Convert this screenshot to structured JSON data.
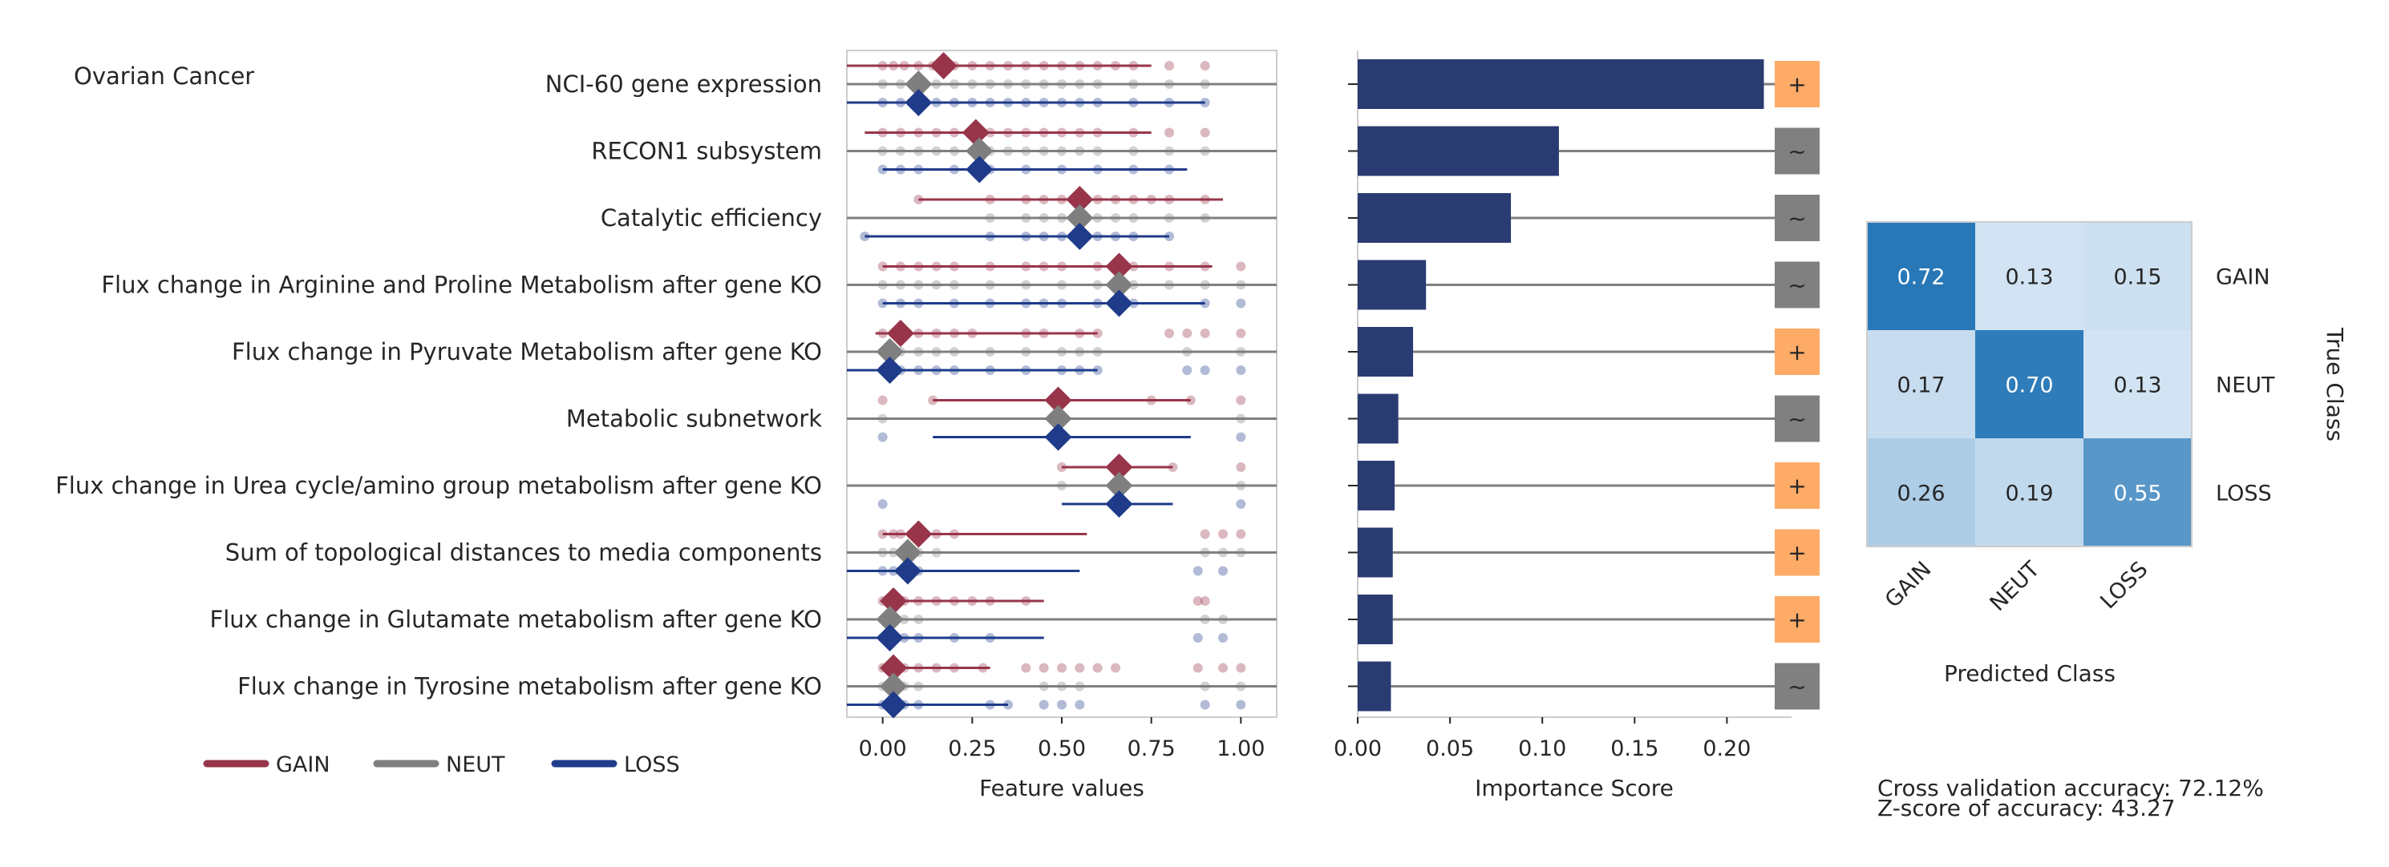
{
  "panel_title": "Ovarian Cancer",
  "legend": [
    {
      "label": "GAIN",
      "color": "#98354a"
    },
    {
      "label": "NEUT",
      "color": "#7f7f7f"
    },
    {
      "label": "LOSS",
      "color": "#1f3b8a"
    }
  ],
  "footer": {
    "accuracy": "Cross validation accuracy: 72.12%",
    "zscore": "Z-score of accuracy: 43.27"
  },
  "chart_data": [
    {
      "type": "scatter",
      "name": "feature_values",
      "xlabel": "Feature values",
      "xlim": [
        -0.1,
        1.1
      ],
      "xticks": [
        "0.00",
        "0.25",
        "0.50",
        "0.75",
        "1.00"
      ],
      "xtick_values": [
        0,
        0.25,
        0.5,
        0.75,
        1.0
      ],
      "categories": [
        "NCI-60 gene expression",
        "RECON1 subsystem",
        "Catalytic efficiency",
        "Flux change in Arginine and Proline Metabolism after gene KO",
        "Flux change in Pyruvate Metabolism after gene KO",
        "Metabolic subnetwork",
        "Flux change in Urea cycle/amino group metabolism after gene KO",
        "Sum of topological distances to media components",
        "Flux change in Glutamate metabolism after gene KO",
        "Flux change in Tyrosine metabolism after gene KO"
      ],
      "series": [
        {
          "name": "GAIN",
          "color": "#98354a",
          "mean": [
            0.17,
            0.26,
            0.55,
            0.66,
            0.05,
            0.49,
            0.66,
            0.1,
            0.03,
            0.03
          ],
          "range": [
            [
              -0.1,
              0.75
            ],
            [
              -0.05,
              0.75
            ],
            [
              0.1,
              0.95
            ],
            [
              0.0,
              0.92
            ],
            [
              -0.02,
              0.6
            ],
            [
              0.14,
              0.86
            ],
            [
              0.5,
              0.81
            ],
            [
              0.0,
              0.57
            ],
            [
              0.0,
              0.45
            ],
            [
              0.0,
              0.3
            ]
          ],
          "points": [
            [
              0.0,
              0.03,
              0.06,
              0.1,
              0.14,
              0.2,
              0.25,
              0.3,
              0.35,
              0.4,
              0.45,
              0.5,
              0.55,
              0.6,
              0.65,
              0.7,
              0.8,
              0.9
            ],
            [
              0.0,
              0.05,
              0.1,
              0.15,
              0.2,
              0.25,
              0.3,
              0.35,
              0.4,
              0.45,
              0.5,
              0.55,
              0.6,
              0.7,
              0.8,
              0.9
            ],
            [
              0.1,
              0.3,
              0.4,
              0.45,
              0.5,
              0.55,
              0.6,
              0.65,
              0.7,
              0.75,
              0.8,
              0.9
            ],
            [
              0.0,
              0.05,
              0.1,
              0.15,
              0.2,
              0.3,
              0.4,
              0.45,
              0.5,
              0.6,
              0.7,
              0.8,
              0.9,
              1.0
            ],
            [
              0.0,
              0.03,
              0.05,
              0.1,
              0.15,
              0.2,
              0.25,
              0.4,
              0.45,
              0.55,
              0.6,
              0.8,
              0.85,
              0.9,
              1.0
            ],
            [
              0.0,
              0.14,
              0.5,
              0.75,
              0.86,
              1.0
            ],
            [
              0.5,
              0.66,
              0.81,
              1.0
            ],
            [
              0.0,
              0.03,
              0.05,
              0.08,
              0.1,
              0.15,
              0.2,
              0.9,
              0.95,
              1.0
            ],
            [
              0.0,
              0.03,
              0.06,
              0.1,
              0.15,
              0.2,
              0.25,
              0.3,
              0.4,
              0.88,
              0.9
            ],
            [
              0.0,
              0.03,
              0.06,
              0.1,
              0.15,
              0.2,
              0.28,
              0.4,
              0.45,
              0.5,
              0.55,
              0.6,
              0.65,
              0.88,
              0.95,
              1.0
            ]
          ]
        },
        {
          "name": "NEUT",
          "color": "#7f7f7f",
          "mean": [
            0.1,
            0.27,
            0.55,
            0.66,
            0.02,
            0.49,
            0.66,
            0.07,
            0.02,
            0.03
          ],
          "range": [
            [
              0.0,
              0.95
            ],
            [
              0.0,
              0.95
            ],
            [
              0.3,
              0.95
            ],
            [
              0.0,
              1.0
            ],
            [
              0.0,
              0.85
            ],
            [
              0.0,
              1.0
            ],
            [
              0.5,
              1.0
            ],
            [
              0.0,
              1.0
            ],
            [
              0.0,
              1.0
            ],
            [
              0.0,
              1.0
            ]
          ],
          "points": [
            [
              0.0,
              0.05,
              0.1,
              0.15,
              0.2,
              0.25,
              0.3,
              0.35,
              0.4,
              0.45,
              0.5,
              0.55,
              0.6,
              0.7,
              0.8,
              0.9
            ],
            [
              0.0,
              0.05,
              0.1,
              0.15,
              0.2,
              0.25,
              0.3,
              0.35,
              0.4,
              0.45,
              0.5,
              0.55,
              0.6,
              0.7,
              0.8,
              0.9
            ],
            [
              0.3,
              0.4,
              0.45,
              0.5,
              0.55,
              0.6,
              0.65,
              0.7,
              0.8,
              0.9
            ],
            [
              0.0,
              0.05,
              0.1,
              0.15,
              0.2,
              0.3,
              0.4,
              0.5,
              0.6,
              0.7,
              0.8,
              0.9,
              1.0
            ],
            [
              0.0,
              0.03,
              0.05,
              0.1,
              0.15,
              0.2,
              0.3,
              0.4,
              0.5,
              0.55,
              0.6,
              0.85,
              1.0
            ],
            [
              0.0,
              0.5,
              1.0
            ],
            [
              0.5,
              0.66,
              1.0
            ],
            [
              0.0,
              0.03,
              0.05,
              0.08,
              0.1,
              0.15,
              0.9,
              0.95,
              1.0
            ],
            [
              0.0,
              0.03,
              0.06,
              0.1,
              0.9,
              0.95
            ],
            [
              0.0,
              0.03,
              0.06,
              0.1,
              0.45,
              0.5,
              0.55,
              0.9,
              1.0
            ]
          ]
        },
        {
          "name": "LOSS",
          "color": "#1f3b8a",
          "mean": [
            0.1,
            0.27,
            0.55,
            0.66,
            0.02,
            0.49,
            0.66,
            0.07,
            0.02,
            0.03
          ],
          "range": [
            [
              -0.1,
              0.9
            ],
            [
              0.0,
              0.85
            ],
            [
              -0.05,
              0.8
            ],
            [
              0.0,
              0.9
            ],
            [
              -0.1,
              0.6
            ],
            [
              0.14,
              0.86
            ],
            [
              0.5,
              0.81
            ],
            [
              -0.1,
              0.55
            ],
            [
              -0.1,
              0.45
            ],
            [
              -0.1,
              0.35
            ]
          ],
          "points": [
            [
              0.0,
              0.05,
              0.1,
              0.15,
              0.2,
              0.25,
              0.3,
              0.35,
              0.4,
              0.45,
              0.5,
              0.55,
              0.6,
              0.7,
              0.8,
              0.9
            ],
            [
              0.0,
              0.05,
              0.1,
              0.2,
              0.3,
              0.4,
              0.5,
              0.6,
              0.7,
              0.8
            ],
            [
              -0.05,
              0.3,
              0.4,
              0.45,
              0.5,
              0.55,
              0.6,
              0.65,
              0.7,
              0.8
            ],
            [
              0.0,
              0.05,
              0.1,
              0.2,
              0.3,
              0.4,
              0.45,
              0.5,
              0.6,
              0.7,
              0.9,
              1.0
            ],
            [
              0.0,
              0.03,
              0.05,
              0.1,
              0.15,
              0.2,
              0.3,
              0.4,
              0.5,
              0.55,
              0.6,
              0.85,
              0.9,
              1.0
            ],
            [
              0.0,
              0.5,
              1.0
            ],
            [
              0.0,
              0.66,
              1.0
            ],
            [
              0.0,
              0.03,
              0.05,
              0.08,
              0.1,
              0.88,
              0.95
            ],
            [
              0.0,
              0.03,
              0.06,
              0.1,
              0.2,
              0.3,
              0.88,
              0.95
            ],
            [
              0.0,
              0.03,
              0.06,
              0.1,
              0.3,
              0.35,
              0.45,
              0.5,
              0.55,
              0.9,
              1.0
            ]
          ]
        }
      ]
    },
    {
      "type": "bar",
      "name": "importance",
      "orientation": "horizontal",
      "xlabel": "Importance Score",
      "xlim": [
        0,
        0.235
      ],
      "xticks": [
        "0.00",
        "0.05",
        "0.10",
        "0.15",
        "0.20"
      ],
      "xtick_values": [
        0,
        0.05,
        0.1,
        0.15,
        0.2
      ],
      "color": "#2a3b72",
      "values": [
        0.22,
        0.109,
        0.083,
        0.037,
        0.03,
        0.022,
        0.02,
        0.019,
        0.019,
        0.018
      ],
      "signs": [
        "+",
        "~",
        "~",
        "~",
        "+",
        "~",
        "+",
        "+",
        "+",
        "~"
      ],
      "sign_colors": {
        "+": "#fdab67",
        "~": "#808080"
      }
    },
    {
      "type": "heatmap",
      "name": "confusion_matrix",
      "xlabel": "Predicted Class",
      "ylabel": "True Class",
      "rows": [
        "GAIN",
        "NEUT",
        "LOSS"
      ],
      "cols": [
        "GAIN",
        "NEUT",
        "LOSS"
      ],
      "values": [
        [
          0.72,
          0.13,
          0.15
        ],
        [
          0.17,
          0.7,
          0.13
        ],
        [
          0.26,
          0.19,
          0.55
        ]
      ],
      "labels": [
        [
          "0.72",
          "0.13",
          "0.15"
        ],
        [
          "0.17",
          "0.70",
          "0.13"
        ],
        [
          "0.26",
          "0.19",
          "0.55"
        ]
      ],
      "colorscale": [
        "#dbe9f6",
        "#2878b8"
      ]
    }
  ]
}
